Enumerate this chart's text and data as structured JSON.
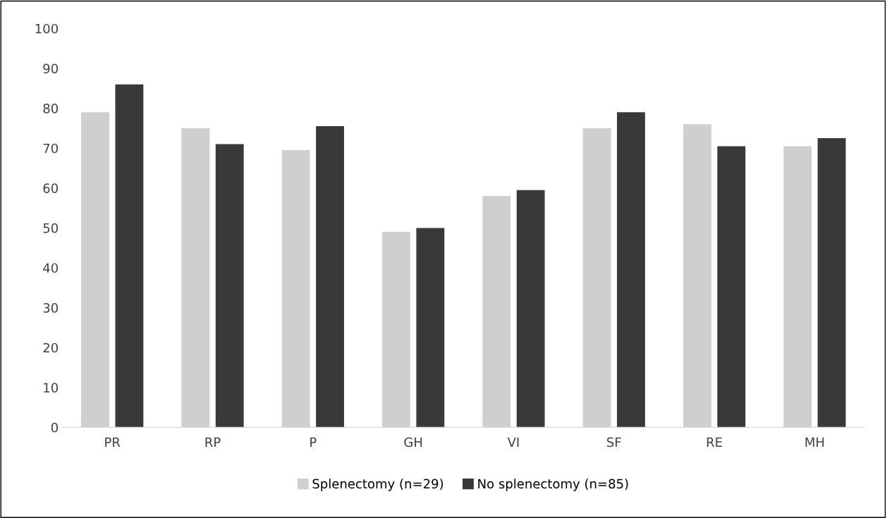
{
  "chart_data": {
    "type": "bar",
    "categories": [
      "PR",
      "RP",
      "P",
      "GH",
      "VI",
      "SF",
      "RE",
      "MH"
    ],
    "series": [
      {
        "name": "Splenectomy (n=29)",
        "color": "#d0cece",
        "values": [
          79,
          75,
          69.5,
          49,
          58,
          75,
          76,
          70.5
        ]
      },
      {
        "name": "No splenectomy (n=85)",
        "color": "#3b3838",
        "values": [
          86,
          71,
          75.5,
          50,
          59.5,
          79,
          70.5,
          72.5
        ]
      }
    ],
    "ylim": [
      0,
      100
    ],
    "yticks": [
      0,
      10,
      20,
      30,
      40,
      50,
      60,
      70,
      80,
      90,
      100
    ],
    "grid": false,
    "legend": "bottom"
  }
}
